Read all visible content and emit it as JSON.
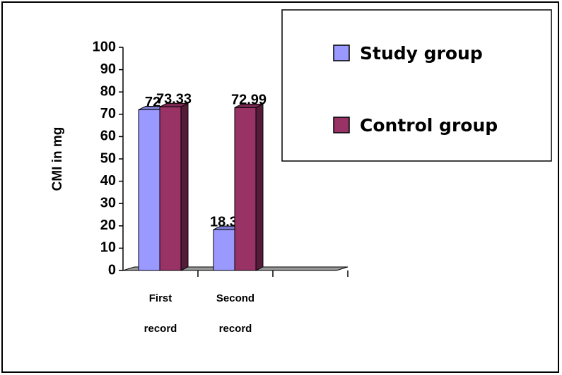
{
  "chart_data": {
    "type": "bar3d",
    "y_label": "CMI in mg",
    "categories": [
      "First record",
      "Second record",
      null
    ],
    "series": [
      {
        "name": "Study group",
        "color": "#9999ff",
        "values": [
          72,
          18.33,
          null
        ]
      },
      {
        "name": "Control group",
        "color": "#993366",
        "values": [
          73.33,
          72.99,
          null
        ]
      }
    ],
    "ylim": [
      0,
      100
    ],
    "yticks": [
      0,
      10,
      20,
      30,
      40,
      50,
      60,
      70,
      80,
      90,
      100
    ],
    "legend_position": "upper right"
  }
}
